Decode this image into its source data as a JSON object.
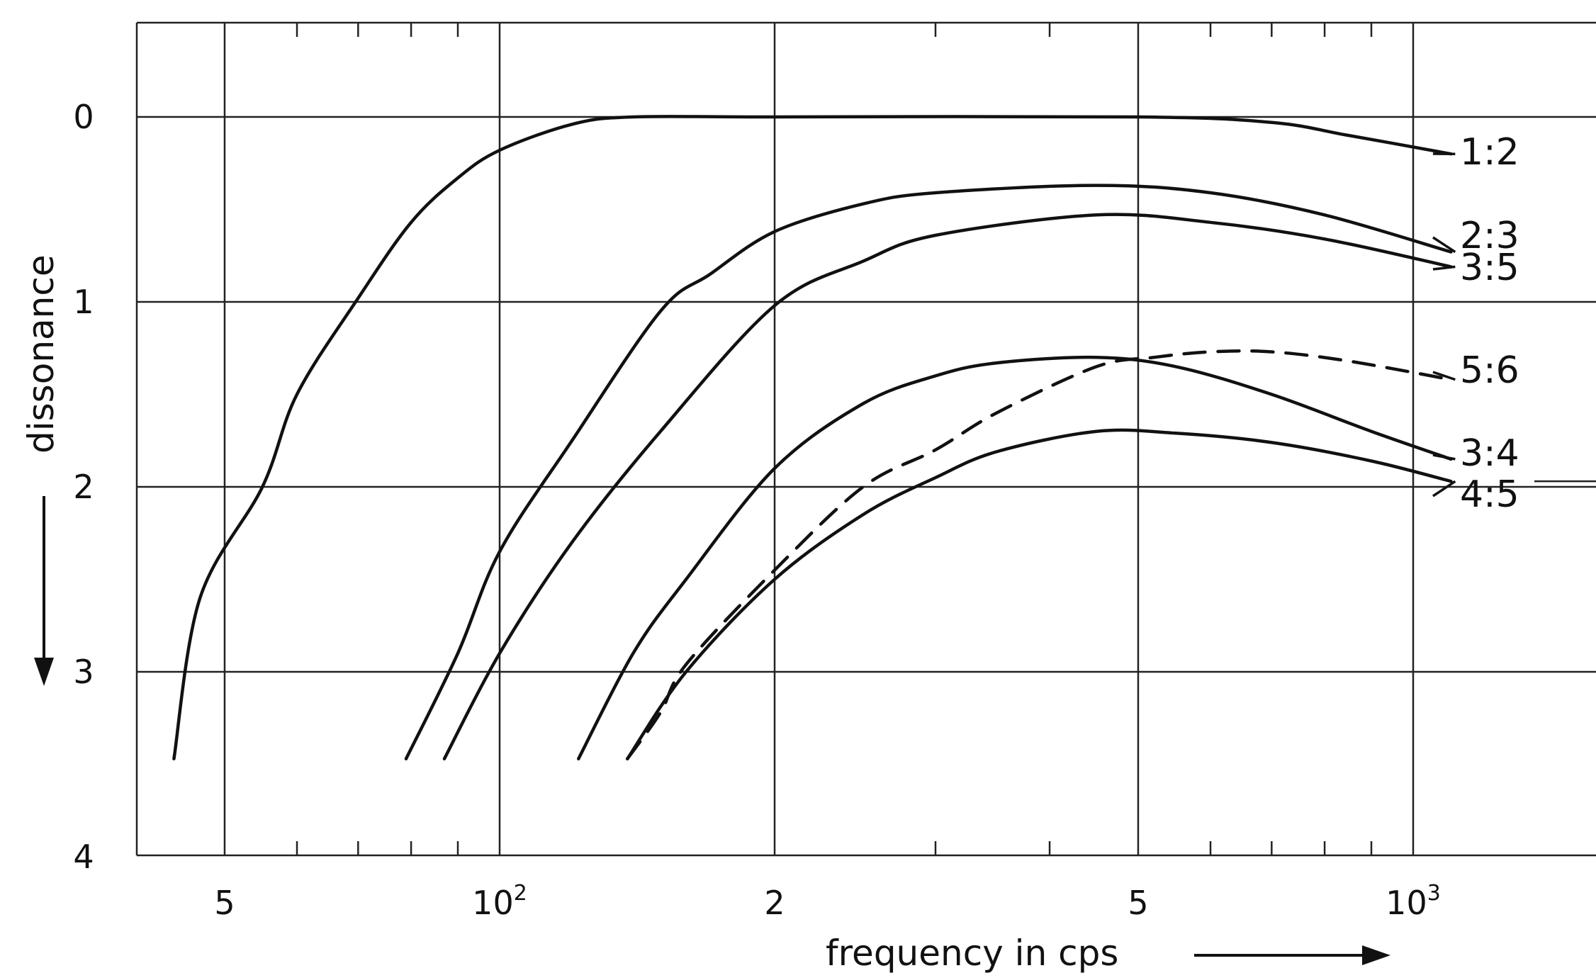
{
  "chart_data": {
    "type": "line",
    "title": "",
    "xlabel": "frequency in cps",
    "ylabel": "dissonance",
    "xscale": "log",
    "xlim": [
      40,
      2200
    ],
    "ylim": [
      4,
      -0.5
    ],
    "y_inverted": true,
    "grid": true,
    "x_ticks": [
      {
        "value": 50,
        "label": "5",
        "exp": ""
      },
      {
        "value": 100,
        "label": "10",
        "exp": "2"
      },
      {
        "value": 200,
        "label": "2",
        "exp": ""
      },
      {
        "value": 500,
        "label": "5",
        "exp": ""
      },
      {
        "value": 1000,
        "label": "10",
        "exp": "3"
      }
    ],
    "y_ticks": [
      {
        "value": 0,
        "label": "0"
      },
      {
        "value": 1,
        "label": "1"
      },
      {
        "value": 2,
        "label": "2"
      },
      {
        "value": 3,
        "label": "3"
      },
      {
        "value": 4,
        "label": "4"
      }
    ],
    "series": [
      {
        "name": "1:2",
        "dashed": false,
        "points": [
          [
            44,
            3.47
          ],
          [
            47,
            2.6
          ],
          [
            55,
            2.0
          ],
          [
            60,
            1.5
          ],
          [
            70,
            0.98
          ],
          [
            80,
            0.57
          ],
          [
            90,
            0.33
          ],
          [
            100,
            0.18
          ],
          [
            120,
            0.04
          ],
          [
            140,
            0.0
          ],
          [
            200,
            0.0
          ],
          [
            500,
            0.0
          ],
          [
            700,
            0.03
          ],
          [
            850,
            0.1
          ],
          [
            1100,
            0.2
          ]
        ]
      },
      {
        "name": "2:3",
        "dashed": false,
        "points": [
          [
            79,
            3.47
          ],
          [
            90,
            2.9
          ],
          [
            100,
            2.35
          ],
          [
            120,
            1.75
          ],
          [
            150,
            1.05
          ],
          [
            170,
            0.85
          ],
          [
            200,
            0.62
          ],
          [
            250,
            0.47
          ],
          [
            300,
            0.41
          ],
          [
            450,
            0.37
          ],
          [
            600,
            0.41
          ],
          [
            800,
            0.53
          ],
          [
            1100,
            0.73
          ]
        ]
      },
      {
        "name": "3:5",
        "dashed": false,
        "points": [
          [
            87,
            3.47
          ],
          [
            100,
            2.9
          ],
          [
            120,
            2.3
          ],
          [
            150,
            1.7
          ],
          [
            200,
            1.02
          ],
          [
            250,
            0.78
          ],
          [
            300,
            0.64
          ],
          [
            450,
            0.53
          ],
          [
            600,
            0.57
          ],
          [
            800,
            0.66
          ],
          [
            1100,
            0.81
          ]
        ]
      },
      {
        "name": "5:6",
        "dashed": true,
        "points": [
          [
            138,
            3.47
          ],
          [
            150,
            3.22
          ],
          [
            160,
            2.96
          ],
          [
            200,
            2.45
          ],
          [
            250,
            2.0
          ],
          [
            300,
            1.8
          ],
          [
            350,
            1.6
          ],
          [
            450,
            1.35
          ],
          [
            520,
            1.3
          ],
          [
            600,
            1.27
          ],
          [
            700,
            1.27
          ],
          [
            850,
            1.32
          ],
          [
            1100,
            1.42
          ]
        ]
      },
      {
        "name": "3:4",
        "dashed": false,
        "points": [
          [
            122,
            3.47
          ],
          [
            140,
            2.9
          ],
          [
            160,
            2.5
          ],
          [
            200,
            1.9
          ],
          [
            250,
            1.55
          ],
          [
            300,
            1.4
          ],
          [
            350,
            1.33
          ],
          [
            450,
            1.3
          ],
          [
            550,
            1.35
          ],
          [
            700,
            1.5
          ],
          [
            900,
            1.7
          ],
          [
            1100,
            1.85
          ]
        ]
      },
      {
        "name": "4:5",
        "dashed": false,
        "points": [
          [
            138,
            3.47
          ],
          [
            160,
            3.0
          ],
          [
            200,
            2.5
          ],
          [
            250,
            2.15
          ],
          [
            300,
            1.95
          ],
          [
            350,
            1.81
          ],
          [
            450,
            1.7
          ],
          [
            550,
            1.71
          ],
          [
            700,
            1.76
          ],
          [
            900,
            1.86
          ],
          [
            1100,
            1.97
          ]
        ]
      }
    ]
  }
}
